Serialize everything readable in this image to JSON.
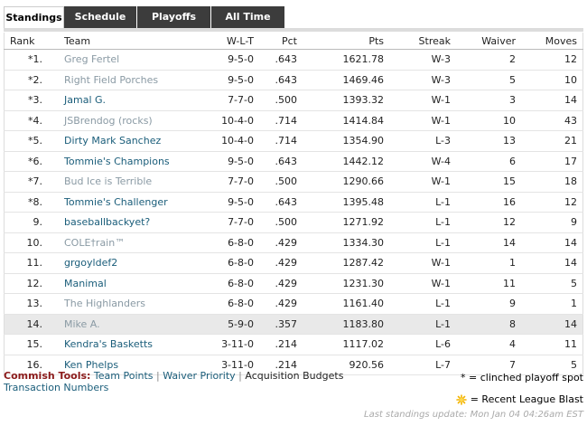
{
  "tabs": [
    {
      "label": "Standings",
      "active": true
    },
    {
      "label": "Schedule",
      "active": false
    },
    {
      "label": "Playoffs",
      "active": false
    },
    {
      "label": "All Time",
      "active": false
    }
  ],
  "columns": {
    "rank": "Rank",
    "team": "Team",
    "wlt": "W-L-T",
    "pct": "Pct",
    "pts": "Pts",
    "streak": "Streak",
    "waiver": "Waiver",
    "moves": "Moves"
  },
  "rows": [
    {
      "rank": "*1.",
      "team": "Greg Fertel",
      "wlt": "9-5-0",
      "pct": ".643",
      "pts": "1621.78",
      "streak": "W-3",
      "waiver": "2",
      "moves": "12",
      "style": "gray"
    },
    {
      "rank": "*2.",
      "team": "Right Field Porches",
      "wlt": "9-5-0",
      "pct": ".643",
      "pts": "1469.46",
      "streak": "W-3",
      "waiver": "5",
      "moves": "10",
      "style": "gray"
    },
    {
      "rank": "*3.",
      "team": "Jamal G.",
      "wlt": "7-7-0",
      "pct": ".500",
      "pts": "1393.32",
      "streak": "W-1",
      "waiver": "3",
      "moves": "14",
      "style": "blue"
    },
    {
      "rank": "*4.",
      "team": "JSBrendog (rocks)",
      "wlt": "10-4-0",
      "pct": ".714",
      "pts": "1414.84",
      "streak": "W-1",
      "waiver": "10",
      "moves": "43",
      "style": "gray"
    },
    {
      "rank": "*5.",
      "team": "Dirty Mark Sanchez",
      "wlt": "10-4-0",
      "pct": ".714",
      "pts": "1354.90",
      "streak": "L-3",
      "waiver": "13",
      "moves": "21",
      "style": "blue"
    },
    {
      "rank": "*6.",
      "team": "Tommie's Champions",
      "wlt": "9-5-0",
      "pct": ".643",
      "pts": "1442.12",
      "streak": "W-4",
      "waiver": "6",
      "moves": "17",
      "style": "blue"
    },
    {
      "rank": "*7.",
      "team": "Bud Ice is Terrible",
      "wlt": "7-7-0",
      "pct": ".500",
      "pts": "1290.66",
      "streak": "W-1",
      "waiver": "15",
      "moves": "18",
      "style": "gray"
    },
    {
      "rank": "*8.",
      "team": "Tommie's Challenger",
      "wlt": "9-5-0",
      "pct": ".643",
      "pts": "1395.48",
      "streak": "L-1",
      "waiver": "16",
      "moves": "12",
      "style": "blue"
    },
    {
      "rank": "9.",
      "team": "baseballbackyet?",
      "wlt": "7-7-0",
      "pct": ".500",
      "pts": "1271.92",
      "streak": "L-1",
      "waiver": "12",
      "moves": "9",
      "style": "blue"
    },
    {
      "rank": "10.",
      "team": "COLE†rain™",
      "wlt": "6-8-0",
      "pct": ".429",
      "pts": "1334.30",
      "streak": "L-1",
      "waiver": "14",
      "moves": "14",
      "style": "gray"
    },
    {
      "rank": "11.",
      "team": "grgoyldef2",
      "wlt": "6-8-0",
      "pct": ".429",
      "pts": "1287.42",
      "streak": "W-1",
      "waiver": "1",
      "moves": "14",
      "style": "blue"
    },
    {
      "rank": "12.",
      "team": "Manimal",
      "wlt": "6-8-0",
      "pct": ".429",
      "pts": "1231.30",
      "streak": "W-1",
      "waiver": "11",
      "moves": "5",
      "style": "blue"
    },
    {
      "rank": "13.",
      "team": "The Highlanders",
      "wlt": "6-8-0",
      "pct": ".429",
      "pts": "1161.40",
      "streak": "L-1",
      "waiver": "9",
      "moves": "1",
      "style": "gray"
    },
    {
      "rank": "14.",
      "team": "Mike A.",
      "wlt": "5-9-0",
      "pct": ".357",
      "pts": "1183.80",
      "streak": "L-1",
      "waiver": "8",
      "moves": "14",
      "style": "gray",
      "highlight": true
    },
    {
      "rank": "15.",
      "team": "Kendra's Basketts",
      "wlt": "3-11-0",
      "pct": ".214",
      "pts": "1117.02",
      "streak": "L-6",
      "waiver": "4",
      "moves": "11",
      "style": "blue"
    },
    {
      "rank": "16.",
      "team": "Ken Phelps",
      "wlt": "3-11-0",
      "pct": ".214",
      "pts": "920.56",
      "streak": "L-7",
      "waiver": "7",
      "moves": "5",
      "style": "blue"
    }
  ],
  "tools": {
    "label": "Commish Tools:",
    "team_points": "Team Points",
    "sep": "|",
    "waiver_priority": "Waiver Priority",
    "acquisition_budgets": "Acquisition Budgets",
    "transaction_numbers": "Transaction Numbers"
  },
  "legend": {
    "clinched": "* = clinched playoff spot",
    "blast": "= Recent League Blast"
  },
  "last_update": "Last standings update: Mon Jan 04 04:26am EST",
  "colors": {
    "team_link": "#1a5d7a",
    "team_muted": "#8a9aa4",
    "tab_dark": "#3c3c3c",
    "commish_label": "#8b1a1a",
    "blast_star": "#f3b400"
  }
}
